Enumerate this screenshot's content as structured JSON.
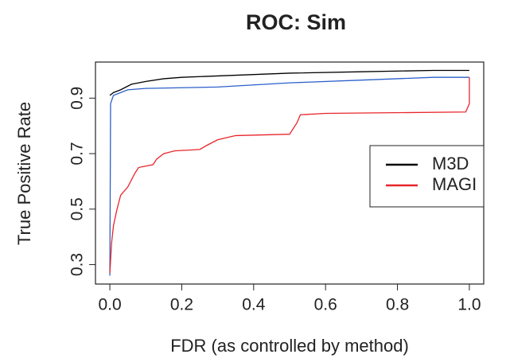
{
  "chart_data": {
    "type": "line",
    "title": "ROC: Sim",
    "x_label": "FDR (as controlled by method)",
    "y_label": "True Positive Rate",
    "xlim": [
      -0.04,
      1.04
    ],
    "ylim": [
      0.23,
      1.03
    ],
    "xticks": [
      {
        "value": 0,
        "label": "0.0"
      },
      0.2,
      0.4,
      0.6,
      0.8,
      {
        "value": 1,
        "label": "1.0"
      }
    ],
    "yticks": [
      0.3,
      0.5,
      0.7,
      0.9
    ],
    "legend": "right",
    "series": [
      {
        "name": "M3D",
        "color": "#000000",
        "x": [
          0,
          0.01,
          0.03,
          0.06,
          0.1,
          0.15,
          0.2,
          0.3,
          0.5,
          0.7,
          0.9,
          1.0
        ],
        "values": [
          0.91,
          0.92,
          0.93,
          0.95,
          0.96,
          0.97,
          0.975,
          0.98,
          0.99,
          0.995,
          1.0,
          1.0
        ]
      },
      {
        "color": "#2b5fc9",
        "x": [
          0,
          0.002,
          0.01,
          0.03,
          0.05,
          0.1,
          0.3,
          0.5,
          0.7,
          0.9,
          1.0
        ],
        "values": [
          0.26,
          0.88,
          0.91,
          0.92,
          0.93,
          0.935,
          0.94,
          0.955,
          0.965,
          0.975,
          0.975
        ]
      },
      {
        "name": "MAGI",
        "color": "#e8262c",
        "x": [
          0,
          0.005,
          0.01,
          0.02,
          0.03,
          0.05,
          0.07,
          0.08,
          0.1,
          0.12,
          0.13,
          0.15,
          0.18,
          0.25,
          0.27,
          0.3,
          0.35,
          0.5,
          0.52,
          0.53,
          0.6,
          0.99,
          1.0,
          1.0
        ],
        "values": [
          0.27,
          0.38,
          0.44,
          0.5,
          0.55,
          0.58,
          0.63,
          0.65,
          0.655,
          0.66,
          0.68,
          0.7,
          0.71,
          0.715,
          0.73,
          0.75,
          0.765,
          0.77,
          0.81,
          0.84,
          0.845,
          0.85,
          0.88,
          0.975
        ]
      }
    ]
  }
}
